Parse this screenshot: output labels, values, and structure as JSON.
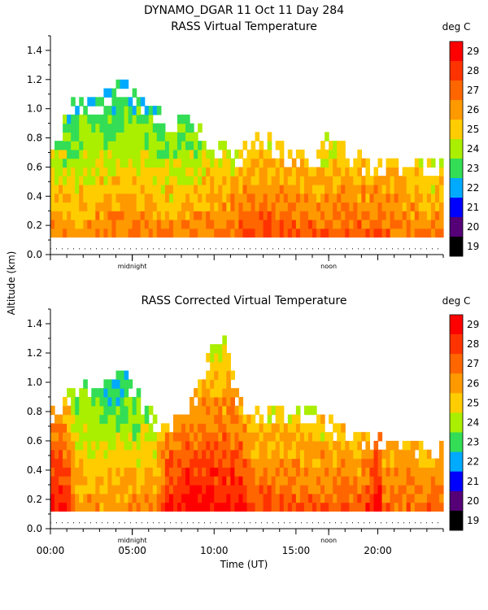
{
  "chart_data": {
    "type": "heatmap",
    "title": "DYNAMO_DGAR  11 Oct 11 Day 284",
    "ylabel": "Altitude (km)",
    "xlabel": "Time (UT)",
    "xlim": [
      0,
      24
    ],
    "ylim": [
      0,
      1.5
    ],
    "yticks": [
      "0.0",
      "0.2",
      "0.4",
      "0.6",
      "0.8",
      "1.0",
      "1.2",
      "1.4"
    ],
    "xticks": [
      "00:00",
      "05:00",
      "10:00",
      "15:00",
      "20:00"
    ],
    "time_markers": [
      {
        "label": "midnight",
        "hour": 5.0
      },
      {
        "label": "noon",
        "hour": 17.0
      }
    ],
    "colorbar": {
      "unit": "deg C",
      "min": 19,
      "max": 29,
      "labels": [
        "29",
        "28",
        "27",
        "26",
        "25",
        "24",
        "23",
        "22",
        "21",
        "20",
        "19"
      ],
      "colors": [
        "#ff0000",
        "#ff3300",
        "#ff6600",
        "#ff9900",
        "#ffcc00",
        "#aaee00",
        "#33dd55",
        "#00aaff",
        "#0000ff",
        "#550077",
        "#000000"
      ]
    },
    "panels": [
      {
        "subtitle": "RASS Virtual Temperature",
        "profile": [
          [
            0.0,
            26.5
          ],
          [
            1.0,
            26.4
          ],
          [
            2.0,
            26.4
          ],
          [
            3.0,
            26.5
          ],
          [
            4.0,
            26.6
          ],
          [
            5.0,
            26.7
          ],
          [
            6.0,
            26.6
          ],
          [
            7.0,
            26.4
          ],
          [
            8.0,
            26.3
          ],
          [
            9.0,
            26.5
          ],
          [
            10.0,
            26.7
          ],
          [
            11.0,
            27.0
          ],
          [
            12.0,
            27.5
          ],
          [
            13.0,
            27.8
          ],
          [
            14.0,
            27.6
          ],
          [
            15.0,
            27.4
          ],
          [
            16.0,
            27.3
          ],
          [
            17.0,
            27.2
          ],
          [
            18.0,
            27.3
          ],
          [
            19.0,
            27.4
          ],
          [
            20.0,
            27.3
          ],
          [
            21.0,
            27.0
          ],
          [
            22.0,
            26.8
          ],
          [
            23.0,
            26.6
          ],
          [
            24.0,
            26.5
          ]
        ],
        "top": [
          [
            0.0,
            0.75
          ],
          [
            1.5,
            1.05
          ],
          [
            3.0,
            1.05
          ],
          [
            4.5,
            1.2
          ],
          [
            5.5,
            1.05
          ],
          [
            7.0,
            0.95
          ],
          [
            8.5,
            0.95
          ],
          [
            10.0,
            0.75
          ],
          [
            11.5,
            0.7
          ],
          [
            13.0,
            0.82
          ],
          [
            14.5,
            0.7
          ],
          [
            16.0,
            0.65
          ],
          [
            17.0,
            0.8
          ],
          [
            18.5,
            0.7
          ],
          [
            19.5,
            0.62
          ],
          [
            21.0,
            0.62
          ],
          [
            22.5,
            0.62
          ],
          [
            23.5,
            0.62
          ]
        ]
      },
      {
        "subtitle": "RASS Corrected Virtual Temperature",
        "profile": [
          [
            0.0,
            29.0
          ],
          [
            1.0,
            28.8
          ],
          [
            1.6,
            26.6
          ],
          [
            3.0,
            26.3
          ],
          [
            5.0,
            26.4
          ],
          [
            6.5,
            26.6
          ],
          [
            7.2,
            28.6
          ],
          [
            8.5,
            29.0
          ],
          [
            10.0,
            29.0
          ],
          [
            11.5,
            29.0
          ],
          [
            12.2,
            27.8
          ],
          [
            13.5,
            27.7
          ],
          [
            15.0,
            27.5
          ],
          [
            17.0,
            27.4
          ],
          [
            19.0,
            27.4
          ],
          [
            20.0,
            29.0
          ],
          [
            20.4,
            27.2
          ],
          [
            22.0,
            27.1
          ],
          [
            24.0,
            27.0
          ]
        ],
        "top": [
          [
            0.0,
            0.78
          ],
          [
            1.5,
            0.95
          ],
          [
            3.0,
            1.0
          ],
          [
            4.5,
            1.05
          ],
          [
            6.0,
            0.8
          ],
          [
            7.0,
            0.7
          ],
          [
            8.5,
            0.8
          ],
          [
            9.5,
            1.15
          ],
          [
            10.5,
            1.38
          ],
          [
            11.5,
            0.85
          ],
          [
            13.0,
            0.82
          ],
          [
            14.5,
            0.78
          ],
          [
            16.0,
            0.8
          ],
          [
            17.5,
            0.7
          ],
          [
            19.0,
            0.65
          ],
          [
            20.5,
            0.6
          ],
          [
            22.0,
            0.55
          ],
          [
            23.5,
            0.55
          ]
        ]
      }
    ],
    "min_altitude": 0.12,
    "noise_line_altitude": 0.04
  }
}
